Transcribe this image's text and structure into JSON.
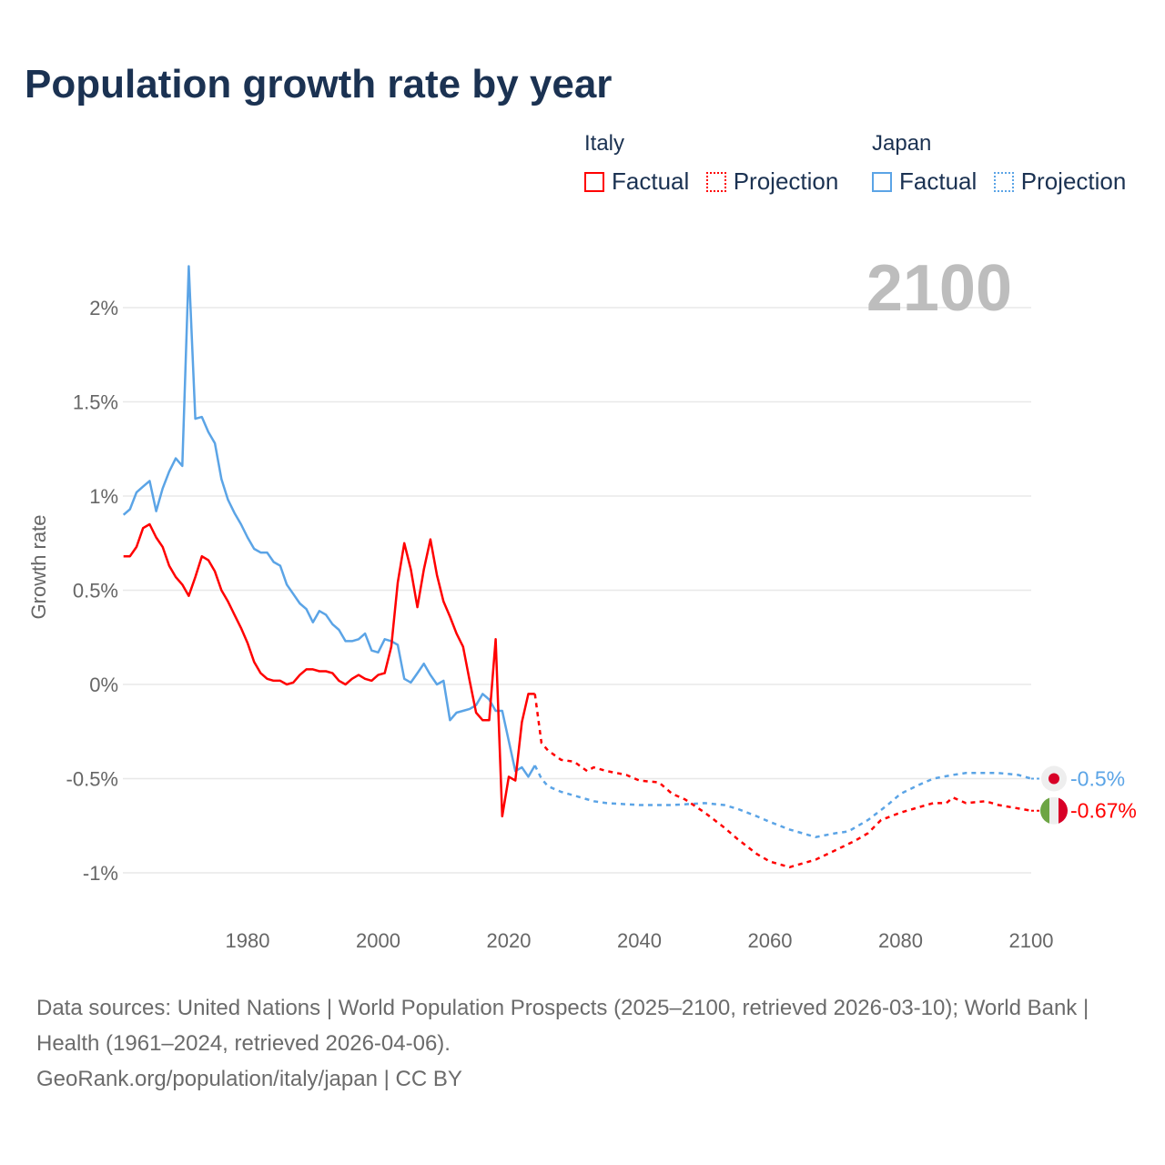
{
  "chart_data": {
    "type": "line",
    "title": "Population growth rate by year",
    "ylabel": "Growth rate",
    "xlabel": "",
    "xlim": [
      1961,
      2100
    ],
    "ylim": [
      -1.2,
      2.3
    ],
    "x_ticks": [
      1980,
      2000,
      2020,
      2040,
      2060,
      2080,
      2100
    ],
    "x_tick_labels": [
      "1980",
      "2000",
      "2020",
      "2040",
      "2060",
      "2080",
      "2100"
    ],
    "y_ticks": [
      2,
      1.5,
      1,
      0.5,
      0,
      -0.5,
      -1
    ],
    "y_tick_labels": [
      "2%",
      "1.5%",
      "1%",
      "0.5%",
      "0%",
      "-0.5%",
      "-1%"
    ],
    "grid": true,
    "year_label": "2100",
    "legend_placement": "top-right",
    "legend": {
      "groups": [
        {
          "name": "Italy",
          "factual": "Factual",
          "projection": "Projection"
        },
        {
          "name": "Japan",
          "factual": "Factual",
          "projection": "Projection"
        }
      ]
    },
    "series": [
      {
        "name": "Italy",
        "color": "#ff0000",
        "end_label": "-0.67%",
        "factual": {
          "x": [
            1961,
            1962,
            1963,
            1964,
            1965,
            1966,
            1967,
            1968,
            1969,
            1970,
            1971,
            1972,
            1973,
            1974,
            1975,
            1976,
            1977,
            1978,
            1979,
            1980,
            1981,
            1982,
            1983,
            1984,
            1985,
            1986,
            1987,
            1988,
            1989,
            1990,
            1991,
            1992,
            1993,
            1994,
            1995,
            1996,
            1997,
            1998,
            1999,
            2000,
            2001,
            2002,
            2003,
            2004,
            2005,
            2006,
            2007,
            2008,
            2009,
            2010,
            2011,
            2012,
            2013,
            2014,
            2015,
            2016,
            2017,
            2018,
            2019,
            2020,
            2021,
            2022,
            2023,
            2024
          ],
          "y": [
            0.68,
            0.68,
            0.73,
            0.83,
            0.85,
            0.78,
            0.73,
            0.63,
            0.57,
            0.53,
            0.47,
            0.57,
            0.68,
            0.66,
            0.6,
            0.5,
            0.44,
            0.37,
            0.3,
            0.22,
            0.12,
            0.06,
            0.03,
            0.02,
            0.02,
            0.0,
            0.01,
            0.05,
            0.08,
            0.08,
            0.07,
            0.07,
            0.06,
            0.02,
            0.0,
            0.03,
            0.05,
            0.03,
            0.02,
            0.05,
            0.06,
            0.2,
            0.54,
            0.75,
            0.61,
            0.41,
            0.61,
            0.77,
            0.58,
            0.44,
            0.36,
            0.27,
            0.2,
            0.02,
            -0.15,
            -0.19,
            -0.19,
            0.24,
            -0.7,
            -0.49,
            -0.51,
            -0.2,
            -0.05,
            -0.05
          ]
        },
        "projection": {
          "x": [
            2024,
            2025,
            2026,
            2028,
            2030,
            2032,
            2033,
            2035,
            2038,
            2040,
            2043,
            2045,
            2047,
            2050,
            2053,
            2055,
            2058,
            2060,
            2063,
            2065,
            2067,
            2070,
            2073,
            2075,
            2077,
            2080,
            2083,
            2085,
            2087,
            2088,
            2090,
            2093,
            2095,
            2100
          ],
          "y": [
            -0.05,
            -0.31,
            -0.35,
            -0.4,
            -0.41,
            -0.46,
            -0.44,
            -0.46,
            -0.48,
            -0.51,
            -0.52,
            -0.58,
            -0.61,
            -0.68,
            -0.76,
            -0.82,
            -0.9,
            -0.94,
            -0.97,
            -0.95,
            -0.93,
            -0.88,
            -0.83,
            -0.79,
            -0.72,
            -0.68,
            -0.65,
            -0.63,
            -0.63,
            -0.6,
            -0.63,
            -0.62,
            -0.64,
            -0.67
          ]
        }
      },
      {
        "name": "Japan",
        "color": "#5ba4e6",
        "end_label": "-0.5%",
        "factual": {
          "x": [
            1961,
            1962,
            1963,
            1964,
            1965,
            1966,
            1967,
            1968,
            1969,
            1970,
            1971,
            1972,
            1973,
            1974,
            1975,
            1976,
            1977,
            1978,
            1979,
            1980,
            1981,
            1982,
            1983,
            1984,
            1985,
            1986,
            1987,
            1988,
            1989,
            1990,
            1991,
            1992,
            1993,
            1994,
            1995,
            1996,
            1997,
            1998,
            1999,
            2000,
            2001,
            2002,
            2003,
            2004,
            2005,
            2006,
            2007,
            2008,
            2009,
            2010,
            2011,
            2012,
            2013,
            2014,
            2015,
            2016,
            2017,
            2018,
            2019,
            2020,
            2021,
            2022,
            2023,
            2024
          ],
          "y": [
            0.9,
            0.93,
            1.02,
            1.05,
            1.08,
            0.92,
            1.04,
            1.13,
            1.2,
            1.16,
            2.22,
            1.41,
            1.42,
            1.34,
            1.28,
            1.09,
            0.98,
            0.91,
            0.85,
            0.78,
            0.72,
            0.7,
            0.7,
            0.65,
            0.63,
            0.53,
            0.48,
            0.43,
            0.4,
            0.33,
            0.39,
            0.37,
            0.32,
            0.29,
            0.23,
            0.23,
            0.24,
            0.27,
            0.18,
            0.17,
            0.24,
            0.23,
            0.21,
            0.03,
            0.01,
            0.06,
            0.11,
            0.05,
            0.0,
            0.02,
            -0.19,
            -0.15,
            -0.14,
            -0.13,
            -0.11,
            -0.05,
            -0.08,
            -0.14,
            -0.14,
            -0.3,
            -0.46,
            -0.44,
            -0.49,
            -0.43
          ]
        },
        "projection": {
          "x": [
            2024,
            2025,
            2026,
            2028,
            2030,
            2033,
            2035,
            2040,
            2045,
            2050,
            2053,
            2055,
            2058,
            2060,
            2063,
            2067,
            2070,
            2072,
            2075,
            2078,
            2080,
            2083,
            2085,
            2088,
            2090,
            2095,
            2098,
            2100
          ],
          "y": [
            -0.43,
            -0.5,
            -0.54,
            -0.57,
            -0.59,
            -0.62,
            -0.63,
            -0.64,
            -0.64,
            -0.63,
            -0.64,
            -0.66,
            -0.7,
            -0.73,
            -0.77,
            -0.81,
            -0.79,
            -0.78,
            -0.72,
            -0.64,
            -0.58,
            -0.53,
            -0.5,
            -0.48,
            -0.47,
            -0.47,
            -0.48,
            -0.5
          ]
        }
      }
    ]
  },
  "footer": {
    "sources": "Data sources: United Nations | World Population Prospects (2025–2100, retrieved 2026-03-10); World Bank | Health (1961–2024, retrieved 2026-04-06).",
    "credit": "GeoRank.org/population/italy/japan | CC BY"
  }
}
